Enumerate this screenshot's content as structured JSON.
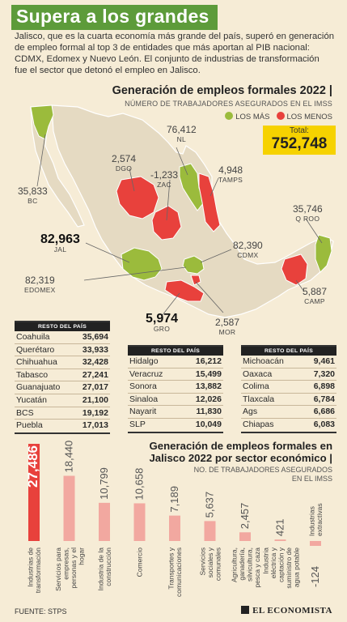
{
  "header": {
    "title": "Supera a los grandes",
    "intro": "Jalisco, que es la cuarta economía más grande del país, superó en generación de empleo formal al top 3 de entidades que más aportan al PIB nacional: CDMX, Edomex y Nuevo León. El conjunto de industrias de transformación fue el sector que detonó el empleo en Jalisco."
  },
  "map_section": {
    "title": "Generación de empleos formales 2022",
    "subtitle": "NÚMERO DE TRABAJADORES ASEGURADOS EN EL IMSS",
    "legend_mas": "LOS MÁS",
    "legend_menos": "LOS MENOS",
    "total_label": "Total:",
    "total_value": "752,748",
    "colors": {
      "mas": "#9bbb3c",
      "menos": "#e8413c",
      "land": "#e5dac2",
      "total_bg": "#f6d200"
    }
  },
  "states": {
    "bc": {
      "value": "35,833",
      "code": "BC"
    },
    "dgo": {
      "value": "2,574",
      "code": "DGO"
    },
    "nl": {
      "value": "76,412",
      "code": "NL"
    },
    "zac": {
      "value": "-1,233",
      "code": "ZAC"
    },
    "tamps": {
      "value": "4,948",
      "code": "TAMPS"
    },
    "qroo": {
      "value": "35,746",
      "code": "Q ROO"
    },
    "jal": {
      "value": "82,963",
      "code": "JAL"
    },
    "cdmx": {
      "value": "82,390",
      "code": "CDMX"
    },
    "edomex": {
      "value": "82,319",
      "code": "EDOMEX"
    },
    "camp": {
      "value": "5,887",
      "code": "CAMP"
    },
    "gro": {
      "value": "5,974",
      "code": "GRO"
    },
    "mor": {
      "value": "2,587",
      "code": "MOR"
    }
  },
  "tables": [
    {
      "header": "RESTO DEL PAÍS",
      "rows": [
        {
          "name": "Coahuila",
          "value": "35,694"
        },
        {
          "name": "Querétaro",
          "value": "33,933"
        },
        {
          "name": "Chihuahua",
          "value": "32,428"
        },
        {
          "name": "Tabasco",
          "value": "27,241"
        },
        {
          "name": "Guanajuato",
          "value": "27,017"
        },
        {
          "name": "Yucatán",
          "value": "21,100"
        },
        {
          "name": "BCS",
          "value": "19,192"
        },
        {
          "name": "Puebla",
          "value": "17,013"
        }
      ]
    },
    {
      "header": "RESTO DEL PAÍS",
      "rows": [
        {
          "name": "Hidalgo",
          "value": "16,212"
        },
        {
          "name": "Veracruz",
          "value": "15,499"
        },
        {
          "name": "Sonora",
          "value": "13,882"
        },
        {
          "name": "Sinaloa",
          "value": "12,026"
        },
        {
          "name": "Nayarit",
          "value": "11,830"
        },
        {
          "name": "SLP",
          "value": "10,049"
        }
      ]
    },
    {
      "header": "RESTO DEL PAÍS",
      "rows": [
        {
          "name": "Michoacán",
          "value": "9,461"
        },
        {
          "name": "Oaxaca",
          "value": "7,320"
        },
        {
          "name": "Colima",
          "value": "6,898"
        },
        {
          "name": "Tlaxcala",
          "value": "6,784"
        },
        {
          "name": "Ags",
          "value": "6,686"
        },
        {
          "name": "Chiapas",
          "value": "6,083"
        }
      ]
    }
  ],
  "bar_section": {
    "title": "Generación de empleos formales en Jalisco 2022 por sector económico",
    "title_sep": "|",
    "subtitle": "NO. DE TRABAJADORES ASEGURADOS EN EL IMSS"
  },
  "chart_data": {
    "type": "bar",
    "title": "Generación de empleos formales en Jalisco 2022 por sector económico",
    "ylabel": "NO. DE TRABAJADORES ASEGURADOS EN EL IMSS",
    "categories": [
      "Industrias de transformación",
      "Servicios para empresas, personas y el hogar",
      "Industria de la construcción",
      "Comercio",
      "Transportes y comunicaciones",
      "Servicios sociales y comunales",
      "Agricultura, ganadería, silvicultura, pesca y caza",
      "Industria eléctrica y captación y suministro de agua potable",
      "Industrias extractivas"
    ],
    "values": [
      27486,
      18440,
      10799,
      10658,
      7189,
      5637,
      2457,
      421,
      -124
    ],
    "value_labels": [
      "27,486",
      "18,440",
      "10,799",
      "10,658",
      "7,189",
      "5,637",
      "2,457",
      "421",
      "-124"
    ],
    "colors": {
      "highlight": "#e8413c",
      "normal": "#f2a8a0"
    }
  },
  "footer": {
    "source": "FUENTE: STPS",
    "brand": "EL ECONOMISTA"
  }
}
